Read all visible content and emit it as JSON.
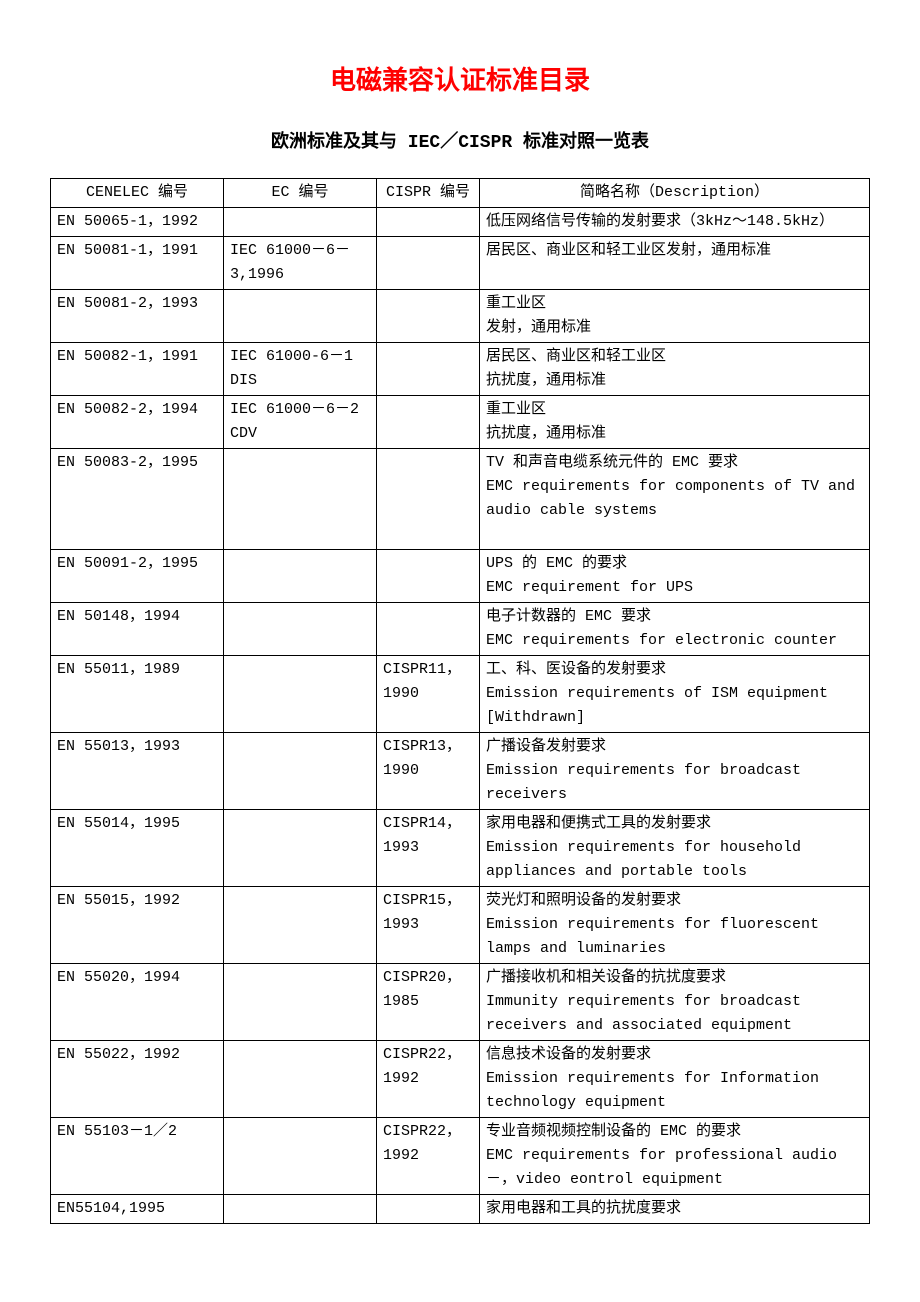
{
  "title": "电磁兼容认证标准目录",
  "subtitle": "欧洲标准及其与 IEC／CISPR 标准对照一览表",
  "table": {
    "headers": {
      "cenelec": "CENELEC 编号",
      "ec": "EC 编号",
      "cispr": "CISPR 编号",
      "desc": "简略名称（Description）"
    },
    "rows": [
      {
        "cenelec": "EN 50065-1，1992",
        "ec": "",
        "cispr": "",
        "desc": "低压网络信号传输的发射要求（3kHz～148.5kHz）"
      },
      {
        "cenelec": "EN 50081-1，1991",
        "ec": "IEC 61000－6－3,1996",
        "cispr": "",
        "desc": "居民区、商业区和轻工业区发射，通用标准"
      },
      {
        "cenelec": "EN 50081-2，1993",
        "ec": "",
        "cispr": "",
        "desc": "重工业区\n发射，通用标准"
      },
      {
        "cenelec": "EN 50082-1，1991",
        "ec": "IEC 61000-6－1 DIS",
        "cispr": "",
        "desc": "居民区、商业区和轻工业区\n抗扰度，通用标准"
      },
      {
        "cenelec": "EN 50082-2，1994",
        "ec": "IEC 61000－6－2 CDV",
        "cispr": "",
        "desc": "重工业区\n抗扰度，通用标准"
      },
      {
        "cenelec": "EN 50083-2，1995",
        "ec": "",
        "cispr": "",
        "desc": "TV 和声音电缆系统元件的 EMC 要求\nEMC requirements for components of TV and audio cable systems\n\n"
      },
      {
        "cenelec": "EN 50091-2，1995",
        "ec": "",
        "cispr": "",
        "desc": "UPS 的 EMC 的要求\nEMC requirement for UPS"
      },
      {
        "cenelec": "EN 50148，1994",
        "ec": "",
        "cispr": "",
        "desc": "电子计数器的 EMC 要求\nEMC requirements for electronic counter"
      },
      {
        "cenelec": "EN 55011，1989",
        "ec": "",
        "cispr": "CISPR11，1990",
        "desc": "工、科、医设备的发射要求\nEmission requirements of ISM equipment [Withdrawn]"
      },
      {
        "cenelec": "EN 55013，1993",
        "ec": "",
        "cispr": "CISPR13，1990",
        "desc": "广播设备发射要求\nEmission requirements for broadcast receivers"
      },
      {
        "cenelec": "EN 55014，1995",
        "ec": "",
        "cispr": "CISPR14，1993",
        "desc": "家用电器和便携式工具的发射要求\nEmission requirements for household appliances and portable tools"
      },
      {
        "cenelec": "EN 55015，1992",
        "ec": "",
        "cispr": "CISPR15，1993",
        "desc": "荧光灯和照明设备的发射要求\nEmission requirements for fluorescent lamps and luminaries"
      },
      {
        "cenelec": "EN 55020，1994",
        "ec": "",
        "cispr": "CISPR20，1985",
        "desc": "广播接收机和相关设备的抗扰度要求\nImmunity requirements for broadcast receivers and associated equipment"
      },
      {
        "cenelec": "EN 55022，1992",
        "ec": "",
        "cispr": "CISPR22，1992",
        "desc": "信息技术设备的发射要求\nEmission requirements for Information technology equipment"
      },
      {
        "cenelec": "EN 55103－1／2",
        "ec": "",
        "cispr": "CISPR22，1992",
        "desc": "专业音频视频控制设备的 EMC 的要求\nEMC requirements for professional audio－，video eontrol equipment"
      },
      {
        "cenelec": "EN55104,1995",
        "ec": "",
        "cispr": "",
        "desc": "家用电器和工具的抗扰度要求"
      }
    ]
  }
}
